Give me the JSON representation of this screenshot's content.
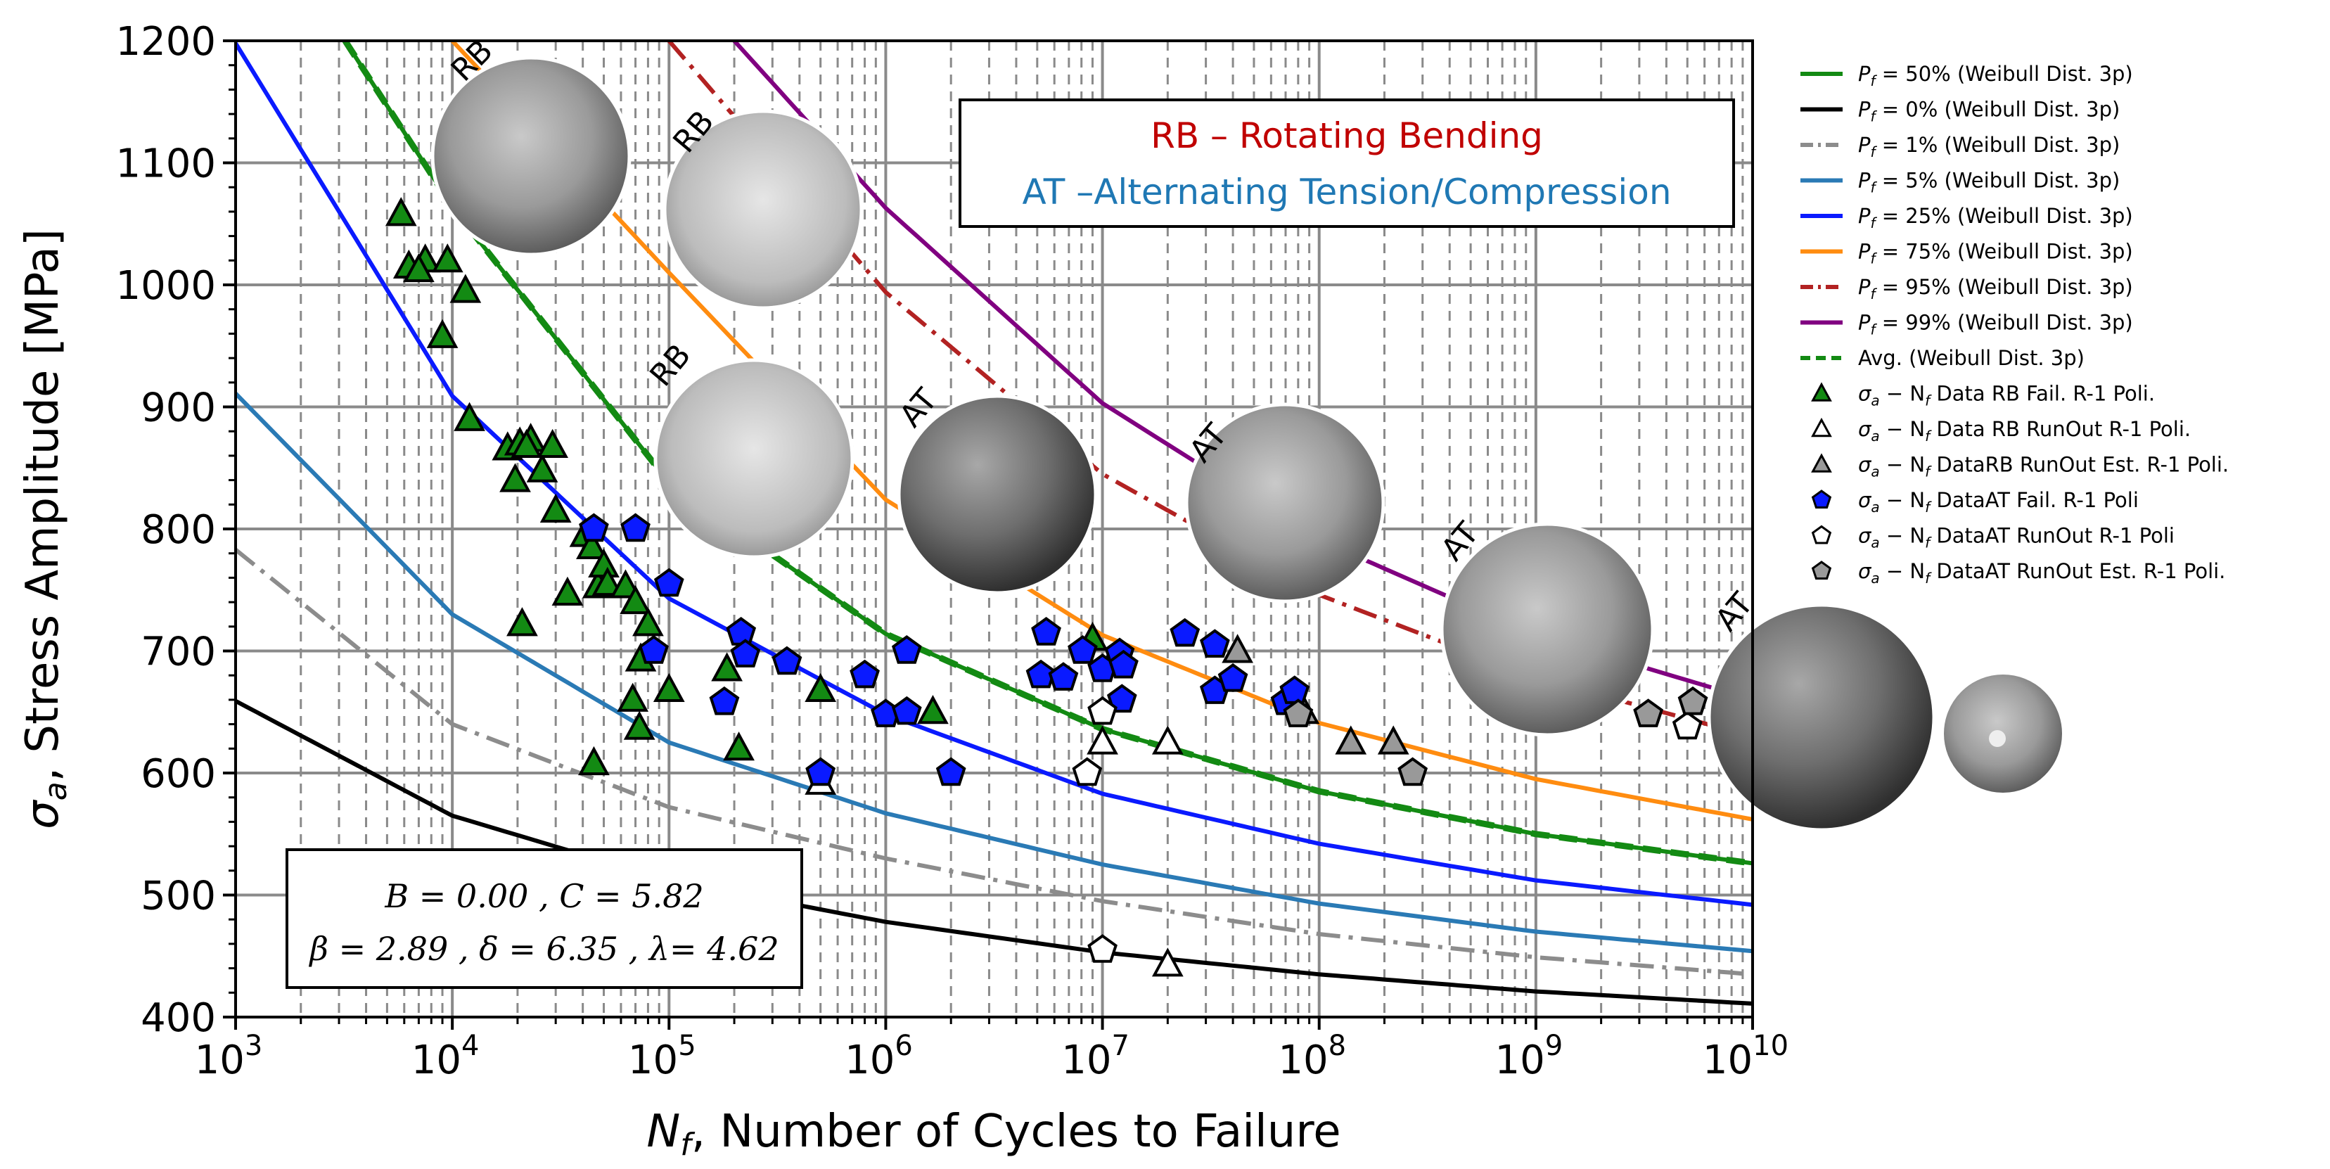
{
  "chart_data": {
    "type": "scatter",
    "x_scale": "log",
    "xlabel": {
      "var": "N",
      "sub": "f",
      "rest": ", Number of Cycles to Failure"
    },
    "ylabel": {
      "var": "σ",
      "sub": "a",
      "rest": ", Stress Amplitude [MPa]"
    },
    "xlim": [
      1000,
      10000000000
    ],
    "ylim": [
      400,
      1200
    ],
    "x_ticks": [
      {
        "base": "10",
        "exp": "3"
      },
      {
        "base": "10",
        "exp": "4"
      },
      {
        "base": "10",
        "exp": "5"
      },
      {
        "base": "10",
        "exp": "6"
      },
      {
        "base": "10",
        "exp": "7"
      },
      {
        "base": "10",
        "exp": "8"
      },
      {
        "base": "10",
        "exp": "9"
      },
      {
        "base": "10",
        "exp": "10"
      }
    ],
    "y_ticks": [
      "400",
      "500",
      "600",
      "700",
      "800",
      "900",
      "1000",
      "1100",
      "1200"
    ],
    "grid": true,
    "legend_position": "right",
    "legend": [
      {
        "pre": "P",
        "sub": "f",
        "text": " = 50% (Weibull Dist. 3p)",
        "color": "#138a13",
        "style": "solid",
        "marker": null
      },
      {
        "pre": "P",
        "sub": "f",
        "text": " = 0% (Weibull Dist. 3p)",
        "color": "#000000",
        "style": "solid",
        "marker": null
      },
      {
        "pre": "P",
        "sub": "f",
        "text": " = 1% (Weibull Dist. 3p)",
        "color": "#8c8c8c",
        "style": "dashdot",
        "marker": null
      },
      {
        "pre": "P",
        "sub": "f",
        "text": " = 5% (Weibull Dist. 3p)",
        "color": "#2a7ab5",
        "style": "solid",
        "marker": null
      },
      {
        "pre": "P",
        "sub": "f",
        "text": " = 25% (Weibull Dist. 3p)",
        "color": "#0a1aff",
        "style": "solid",
        "marker": null
      },
      {
        "pre": "P",
        "sub": "f",
        "text": " = 75% (Weibull Dist. 3p)",
        "color": "#ff8c10",
        "style": "solid",
        "marker": null
      },
      {
        "pre": "P",
        "sub": "f",
        "text": " = 95% (Weibull Dist. 3p)",
        "color": "#b22222",
        "style": "dashdot",
        "marker": null
      },
      {
        "pre": "P",
        "sub": "f",
        "text": " = 99% (Weibull Dist. 3p)",
        "color": "#800080",
        "style": "solid",
        "marker": null
      },
      {
        "pre": "",
        "sub": "",
        "text": "Avg. (Weibull Dist. 3p)",
        "color": "#138a13",
        "style": "dashed",
        "marker": null
      },
      {
        "pre": "σ",
        "sub": "a",
        "text": " − N",
        "sub2": "f",
        "text2": " Data RB Fail. R-1 Poli.",
        "color": "#138a13",
        "style": "none",
        "marker": "triangle"
      },
      {
        "pre": "σ",
        "sub": "a",
        "text": " − N",
        "sub2": "f",
        "text2": " Data RB RunOut  R-1 Poli.",
        "color": "#ffffff",
        "style": "none",
        "marker": "triangle"
      },
      {
        "pre": "σ",
        "sub": "a",
        "text": " − N",
        "sub2": "f",
        "text2": " DataRB RunOut Est. R-1 Poli.",
        "color": "#999999",
        "style": "none",
        "marker": "triangle"
      },
      {
        "pre": "σ",
        "sub": "a",
        "text": " − N",
        "sub2": "f",
        "text2": " DataAT Fail. R-1 Poli",
        "color": "#0a1aff",
        "style": "none",
        "marker": "pentagon"
      },
      {
        "pre": "σ",
        "sub": "a",
        "text": " − N",
        "sub2": "f",
        "text2": " DataAT RunOut  R-1 Poli",
        "color": "#ffffff",
        "style": "none",
        "marker": "pentagon"
      },
      {
        "pre": "σ",
        "sub": "a",
        "text": " − N",
        "sub2": "f",
        "text2": " DataAT RunOut Est. R-1 Poli.",
        "color": "#999999",
        "style": "none",
        "marker": "pentagon"
      }
    ],
    "curves": [
      {
        "name": "Pf = 0%",
        "color": "#000000",
        "style": "solid",
        "x": [
          1000,
          10000,
          100000,
          1000000,
          10000000,
          100000000,
          1000000000,
          10000000000
        ],
        "y": [
          659,
          565,
          512,
          478,
          453,
          435,
          421,
          411
        ]
      },
      {
        "name": "Pf = 1%",
        "color": "#8c8c8c",
        "style": "dashdot",
        "x": [
          1000,
          10000,
          100000,
          1000000,
          10000000,
          100000000,
          1000000000,
          10000000000
        ],
        "y": [
          783,
          640,
          572,
          530,
          495,
          468,
          449,
          435
        ]
      },
      {
        "name": "Pf = 5%",
        "color": "#2a7ab5",
        "style": "solid",
        "x": [
          1000,
          10000,
          100000,
          1000000,
          10000000,
          100000000,
          1000000000,
          10000000000
        ],
        "y": [
          911,
          730,
          625,
          567,
          525,
          493,
          470,
          454
        ]
      },
      {
        "name": "Pf = 25%",
        "color": "#0a1aff",
        "style": "solid",
        "x": [
          1000,
          10000,
          100000,
          1000000,
          10000000,
          100000000,
          1000000000,
          10000000000
        ],
        "y": [
          1198,
          909,
          743,
          648,
          583,
          542,
          512,
          492
        ]
      },
      {
        "name": "Pf = 50%",
        "color": "#138a13",
        "style": "solid",
        "x": [
          3200,
          10000,
          100000,
          1000000,
          10000000,
          100000000,
          1000000000,
          10000000000
        ],
        "y": [
          1200,
          1064,
          838,
          714,
          636,
          585,
          550,
          526
        ]
      },
      {
        "name": "Avg.",
        "color": "#138a13",
        "style": "dashed",
        "x": [
          3200,
          10000,
          100000,
          1000000,
          10000000,
          100000000,
          1000000000,
          10000000000
        ],
        "y": [
          1200,
          1064,
          838,
          714,
          636,
          585,
          550,
          526
        ]
      },
      {
        "name": "Pf = 75%",
        "color": "#ff8c10",
        "style": "solid",
        "x": [
          10000,
          100000,
          1000000,
          10000000,
          100000000,
          1000000000,
          10000000000
        ],
        "y": [
          1200,
          1010,
          824,
          713,
          641,
          595,
          562
        ]
      },
      {
        "name": "Pf = 95%",
        "color": "#b22222",
        "style": "dashdot",
        "x": [
          100000,
          1000000,
          10000000,
          100000000,
          1000000000,
          10000000000
        ],
        "y": [
          1200,
          994,
          845,
          746,
          678,
          630
        ]
      },
      {
        "name": "Pf = 99%",
        "color": "#800080",
        "style": "solid",
        "x": [
          200000,
          1000000,
          10000000,
          100000000,
          1000000000,
          10000000000
        ],
        "y": [
          1200,
          1063,
          903,
          791,
          713,
          660
        ]
      }
    ],
    "series": [
      {
        "name": "Data RB Fail. R-1 Poli.",
        "marker": "triangle",
        "fill": "#138a13",
        "points": [
          [
            5800,
            1058
          ],
          [
            6300,
            1015
          ],
          [
            7500,
            1020
          ],
          [
            9500,
            1020
          ],
          [
            7000,
            1012
          ],
          [
            9000,
            958
          ],
          [
            11500,
            995
          ],
          [
            12000,
            890
          ],
          [
            18000,
            866
          ],
          [
            19500,
            840
          ],
          [
            20500,
            870
          ],
          [
            23000,
            873
          ],
          [
            26000,
            848
          ],
          [
            22000,
            868
          ],
          [
            29000,
            868
          ],
          [
            30000,
            815
          ],
          [
            34000,
            747
          ],
          [
            21000,
            722
          ],
          [
            41000,
            795
          ],
          [
            44000,
            785
          ],
          [
            47000,
            753
          ],
          [
            50000,
            770
          ],
          [
            52000,
            755
          ],
          [
            63000,
            753
          ],
          [
            70000,
            740
          ],
          [
            68000,
            660
          ],
          [
            73000,
            637
          ],
          [
            74000,
            693
          ],
          [
            80000,
            722
          ],
          [
            100000,
            668
          ],
          [
            185000,
            685
          ],
          [
            210000,
            620
          ],
          [
            45000,
            608
          ],
          [
            500000,
            668
          ],
          [
            1650000,
            650
          ],
          [
            9000000,
            710
          ],
          [
            11000000,
            690
          ]
        ]
      },
      {
        "name": "Data RB RunOut R-1 Poli.",
        "marker": "triangle",
        "fill": "#ffffff",
        "points": [
          [
            10000000,
            625
          ],
          [
            20000000,
            625
          ],
          [
            20000000,
            443
          ],
          [
            500000,
            592
          ]
        ]
      },
      {
        "name": "DataRB RunOut Est. R-1 Poli.",
        "marker": "triangle",
        "fill": "#999999",
        "points": [
          [
            42000000,
            700
          ],
          [
            85000000,
            650
          ],
          [
            140000000,
            625
          ],
          [
            220000000,
            625
          ]
        ]
      },
      {
        "name": "DataAT Fail. R-1 Poli",
        "marker": "pentagon",
        "fill": "#0a1aff",
        "points": [
          [
            45000,
            800
          ],
          [
            70000,
            800
          ],
          [
            85000,
            700
          ],
          [
            100000,
            755
          ],
          [
            180000,
            658
          ],
          [
            215000,
            715
          ],
          [
            225000,
            697
          ],
          [
            350000,
            691
          ],
          [
            500000,
            600
          ],
          [
            800000,
            680
          ],
          [
            1000000,
            648
          ],
          [
            1250000,
            700
          ],
          [
            1250000,
            650
          ],
          [
            2000000,
            600
          ],
          [
            5200000,
            680
          ],
          [
            5500000,
            715
          ],
          [
            6600000,
            678
          ],
          [
            8100000,
            700
          ],
          [
            10000000,
            685
          ],
          [
            12000000,
            698
          ],
          [
            12300000,
            660
          ],
          [
            12500000,
            688
          ],
          [
            24000000,
            714
          ],
          [
            33000000,
            705
          ],
          [
            33000000,
            667
          ],
          [
            40000000,
            677
          ],
          [
            70000000,
            658
          ],
          [
            77000000,
            667
          ]
        ]
      },
      {
        "name": "DataAT RunOut R-1 Poli",
        "marker": "pentagon",
        "fill": "#ffffff",
        "points": [
          [
            8500000,
            600
          ],
          [
            10000000,
            650
          ],
          [
            10000000,
            455
          ],
          [
            5000000000,
            638
          ]
        ]
      },
      {
        "name": "DataAT RunOut Est. R-1 Poli.",
        "marker": "pentagon",
        "fill": "#999999",
        "points": [
          [
            80000000,
            648
          ],
          [
            270000000,
            600
          ],
          [
            3300000000,
            648
          ],
          [
            5300000000,
            658
          ]
        ]
      }
    ],
    "annotations": {
      "box_line1": "RB – Rotating Bending",
      "box_line2": "AT –Alternating Tension/Compression",
      "box_line1_color": "#c00000",
      "box_line2_color": "#1f78b4",
      "params_line1": "B = 0.00 , C = 5.82",
      "params_line2": "β =  2.89 , δ =  6.35 ,  λ=  4.62",
      "image_labels": [
        {
          "text": "RB",
          "color": "#c00000"
        },
        {
          "text": "RB",
          "color": "#c00000"
        },
        {
          "text": "RB",
          "color": "#c00000"
        },
        {
          "text": "AT",
          "color": "#1f78b4"
        },
        {
          "text": "AT",
          "color": "#1f78b4"
        },
        {
          "text": "AT",
          "color": "#1f78b4"
        },
        {
          "text": "AT",
          "color": "#1f78b4"
        }
      ]
    }
  }
}
